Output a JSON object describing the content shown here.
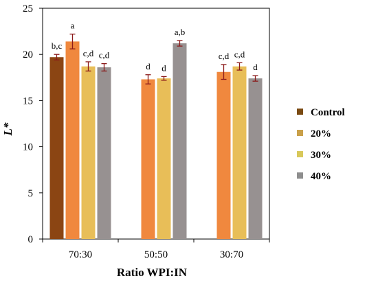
{
  "chart_data": {
    "type": "bar",
    "ylabel": "L*",
    "xlabel": "Ratio WPI:IN",
    "ylim": [
      0,
      25
    ],
    "yticks": [
      0,
      5,
      10,
      15,
      20,
      25
    ],
    "grid": false,
    "legend_position": "right",
    "categories": [
      "70:30",
      "50:50",
      "30:70"
    ],
    "series": [
      {
        "name": "Control",
        "color": "#8B4513",
        "values": [
          19.7,
          null,
          null
        ],
        "errors": [
          0.3,
          null,
          null
        ],
        "labels": [
          "b,c",
          "",
          ""
        ]
      },
      {
        "name": "20%",
        "color": "#F0883E",
        "values": [
          21.4,
          17.3,
          18.1
        ],
        "errors": [
          0.8,
          0.5,
          0.8
        ],
        "labels": [
          "a",
          "d",
          "c,d"
        ]
      },
      {
        "name": "30%",
        "color": "#E8BE58",
        "values": [
          18.7,
          17.4,
          18.7
        ],
        "errors": [
          0.5,
          0.2,
          0.4
        ],
        "labels": [
          "c,d",
          "d",
          "c,d"
        ]
      },
      {
        "name": "40%",
        "color": "#979191",
        "values": [
          18.6,
          21.2,
          17.4
        ],
        "errors": [
          0.4,
          0.3,
          0.3
        ],
        "labels": [
          "c,d",
          "a,b",
          "d"
        ]
      }
    ]
  },
  "legend_swatch_colors": [
    "#7A4A13",
    "#C9A04A",
    "#D8C85A",
    "#8E8E8E"
  ]
}
